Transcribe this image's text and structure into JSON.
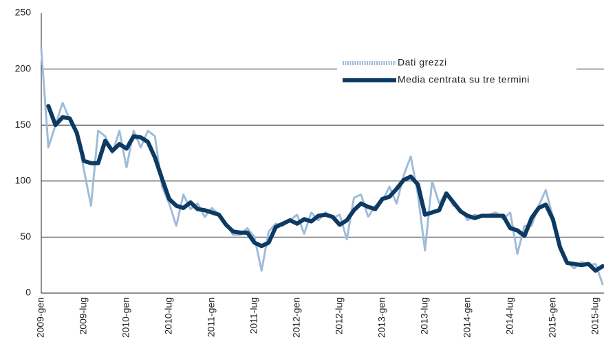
{
  "chart_data": {
    "type": "line",
    "categories": [
      "2009-gen",
      null,
      null,
      null,
      null,
      null,
      "2009-lug",
      null,
      null,
      null,
      null,
      null,
      "2010-gen",
      null,
      null,
      null,
      null,
      null,
      "2010-lug",
      null,
      null,
      null,
      null,
      null,
      "2011-gen",
      null,
      null,
      null,
      null,
      null,
      "2011-lug",
      null,
      null,
      null,
      null,
      null,
      "2012-gen",
      null,
      null,
      null,
      null,
      null,
      "2012-lug",
      null,
      null,
      null,
      null,
      null,
      "2013-gen",
      null,
      null,
      null,
      null,
      null,
      "2013-lug",
      null,
      null,
      null,
      null,
      null,
      "2014-gen",
      null,
      null,
      null,
      null,
      null,
      "2014-lug",
      null,
      null,
      null,
      null,
      null,
      "2015-gen",
      null,
      null,
      null,
      null,
      null,
      "2015-lug",
      null
    ],
    "series": [
      {
        "name": "Dati grezzi",
        "color": "#9fbbd9",
        "values": [
          218,
          130,
          150,
          170,
          155,
          145,
          110,
          78,
          145,
          140,
          125,
          145,
          112,
          145,
          130,
          145,
          140,
          95,
          80,
          60,
          88,
          75,
          80,
          68,
          76,
          70,
          62,
          52,
          52,
          58,
          50,
          20,
          55,
          62,
          60,
          65,
          70,
          53,
          72,
          65,
          72,
          67,
          70,
          48,
          85,
          88,
          68,
          78,
          82,
          95,
          80,
          105,
          122,
          88,
          38,
          100,
          80,
          90,
          78,
          75,
          65,
          70,
          68,
          70,
          72,
          66,
          72,
          35,
          60,
          60,
          78,
          92,
          68,
          40,
          28,
          22,
          28,
          25,
          26,
          8
        ]
      },
      {
        "name": "Media centrata su tre termini",
        "color": "#0d3a63",
        "values": [
          null,
          167,
          150,
          157,
          156,
          143,
          118,
          116,
          116,
          136,
          127,
          133,
          129,
          140,
          139,
          135,
          121,
          102,
          84,
          78,
          76,
          81,
          75,
          74,
          72,
          70,
          61,
          55,
          54,
          54,
          45,
          42,
          45,
          59,
          62,
          65,
          62,
          66,
          64,
          69,
          70,
          68,
          61,
          65,
          74,
          80,
          77,
          75,
          84,
          86,
          93,
          101,
          104,
          97,
          70,
          72,
          74,
          89,
          81,
          73,
          69,
          67,
          69,
          69,
          69,
          69,
          58,
          56,
          51,
          67,
          76,
          79,
          66,
          41,
          27,
          26,
          25,
          26,
          20,
          24
        ]
      }
    ],
    "ylim": [
      0,
      250
    ],
    "yticks": [
      0,
      50,
      100,
      150,
      200,
      250
    ],
    "grid": true
  }
}
